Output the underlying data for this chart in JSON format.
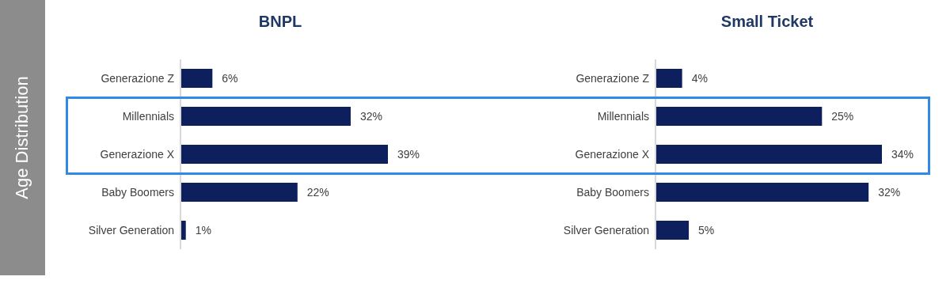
{
  "chart_data": [
    {
      "type": "bar",
      "orientation": "horizontal",
      "title": "BNPL",
      "ylabel": "Age Distribution",
      "categories": [
        "Generazione Z",
        "Millennials",
        "Generazione X",
        "Baby Boomers",
        "Silver Generation"
      ],
      "values": [
        6,
        32,
        39,
        22,
        1
      ],
      "value_labels": [
        "6%",
        "32%",
        "39%",
        "22%",
        "1%"
      ],
      "color": "#0d1f5c"
    },
    {
      "type": "bar",
      "orientation": "horizontal",
      "title": "Small Ticket",
      "categories": [
        "Generazione Z",
        "Millennials",
        "Generazione X",
        "Baby Boomers",
        "Silver Generation"
      ],
      "values": [
        4,
        25,
        34,
        32,
        5
      ],
      "value_labels": [
        "4%",
        "25%",
        "34%",
        "32%",
        "5%"
      ],
      "color": "#0d1f5c"
    }
  ]
}
